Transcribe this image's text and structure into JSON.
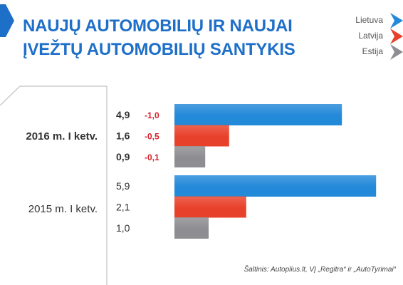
{
  "title": {
    "line1": "NAUJŲ AUTOMOBILIŲ IR NAUJAI",
    "line2": "ĮVEŽTŲ AUTOMOBILIŲ SANTYKIS"
  },
  "legend": [
    {
      "label": "Lietuva",
      "color": "#2389d9",
      "icon": "chevron-right-icon"
    },
    {
      "label": "Latvija",
      "color": "#e8412b",
      "icon": "chevron-right-icon"
    },
    {
      "label": "Estija",
      "color": "#8e8e92",
      "icon": "chevron-right-icon"
    }
  ],
  "source": "Šaltinis: Autoplius.lt, VĮ „Regitra“ ir „AutoTyrimai“",
  "colors": {
    "accent": "#1e6fc8"
  },
  "chart_data": {
    "type": "bar",
    "orientation": "horizontal",
    "title": "NAUJŲ AUTOMOBILIŲ IR NAUJAI ĮVEŽTŲ AUTOMOBILIŲ SANTYKIS",
    "categories": [
      "2016 m. I ketv.",
      "2015 m. I ketv."
    ],
    "series": [
      {
        "name": "Lietuva",
        "color": "#2389d9",
        "values": [
          4.9,
          5.9
        ],
        "labels": [
          "4,9",
          "5,9"
        ],
        "change": [
          "-1,0",
          null
        ]
      },
      {
        "name": "Latvija",
        "color": "#e8412b",
        "values": [
          1.6,
          2.1
        ],
        "labels": [
          "1,6",
          "2,1"
        ],
        "change": [
          "-0,5",
          null
        ]
      },
      {
        "name": "Estija",
        "color": "#8e8e92",
        "values": [
          0.9,
          1.0
        ],
        "labels": [
          "0,9",
          "1,0"
        ],
        "change": [
          "-0,1",
          null
        ]
      }
    ],
    "xlim": [
      0,
      6
    ],
    "grid": false,
    "legend_position": "top-right"
  }
}
